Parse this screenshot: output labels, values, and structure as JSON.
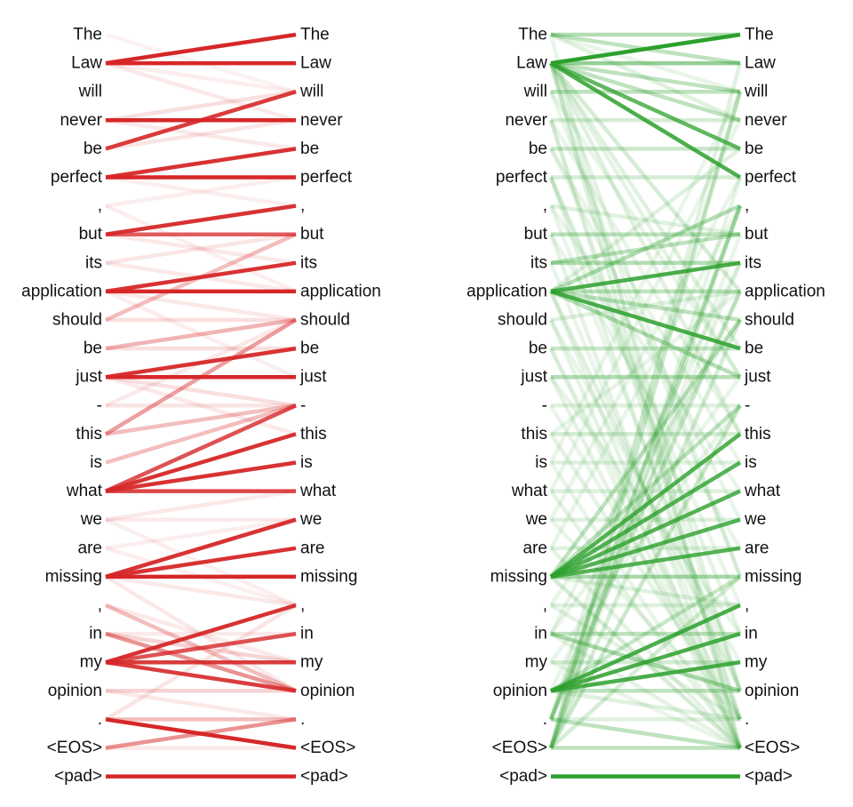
{
  "tokens": [
    "The",
    "Law",
    "will",
    "never",
    "be",
    "perfect",
    ",",
    "but",
    "its",
    "application",
    "should",
    "be",
    "just",
    "-",
    "this",
    "is",
    "what",
    "we",
    "are",
    "missing",
    ",",
    "in",
    "my",
    "opinion",
    ".",
    "<EOS>",
    "<pad>"
  ],
  "panels": [
    {
      "id": "left",
      "color": "#d62728",
      "edges": [
        [
          0,
          2,
          0.06
        ],
        [
          1,
          0,
          1
        ],
        [
          1,
          1,
          1
        ],
        [
          1,
          2,
          0.08
        ],
        [
          1,
          3,
          0.1
        ],
        [
          3,
          2,
          0.15
        ],
        [
          3,
          3,
          1
        ],
        [
          3,
          4,
          0.1
        ],
        [
          4,
          2,
          0.9
        ],
        [
          4,
          3,
          0.12
        ],
        [
          5,
          4,
          0.95
        ],
        [
          5,
          5,
          1
        ],
        [
          5,
          6,
          0.08
        ],
        [
          6,
          5,
          0.08
        ],
        [
          6,
          9,
          0.08
        ],
        [
          7,
          6,
          0.95
        ],
        [
          7,
          7,
          0.75
        ],
        [
          7,
          8,
          0.1
        ],
        [
          8,
          7,
          0.12
        ],
        [
          8,
          9,
          0.1
        ],
        [
          9,
          8,
          0.95
        ],
        [
          9,
          9,
          1
        ],
        [
          9,
          10,
          0.1
        ],
        [
          10,
          10,
          0.15
        ],
        [
          10,
          7,
          0.3
        ],
        [
          11,
          11,
          0.15
        ],
        [
          11,
          10,
          0.35
        ],
        [
          12,
          11,
          0.95
        ],
        [
          12,
          12,
          1
        ],
        [
          12,
          13,
          0.15
        ],
        [
          13,
          13,
          0.12
        ],
        [
          13,
          10,
          0.1
        ],
        [
          14,
          10,
          0.45
        ],
        [
          14,
          13,
          0.3
        ],
        [
          15,
          13,
          0.3
        ],
        [
          16,
          13,
          0.8
        ],
        [
          16,
          14,
          0.95
        ],
        [
          16,
          15,
          0.95
        ],
        [
          16,
          16,
          0.85
        ],
        [
          17,
          16,
          0.1
        ],
        [
          17,
          17,
          0.1
        ],
        [
          18,
          17,
          0.08
        ],
        [
          18,
          20,
          0.08
        ],
        [
          19,
          17,
          0.95
        ],
        [
          19,
          18,
          0.95
        ],
        [
          19,
          19,
          1
        ],
        [
          19,
          20,
          0.1
        ],
        [
          20,
          23,
          0.3
        ],
        [
          20,
          22,
          0.1
        ],
        [
          21,
          23,
          0.5
        ],
        [
          21,
          22,
          0.2
        ],
        [
          22,
          20,
          0.95
        ],
        [
          22,
          21,
          0.8
        ],
        [
          22,
          22,
          0.9
        ],
        [
          22,
          23,
          0.9
        ],
        [
          23,
          23,
          0.2
        ],
        [
          23,
          24,
          0.1
        ],
        [
          24,
          24,
          0.3
        ],
        [
          24,
          25,
          1
        ],
        [
          25,
          24,
          0.5
        ],
        [
          25,
          25,
          0.1
        ],
        [
          26,
          26,
          1
        ],
        [
          19,
          23,
          0.1
        ],
        [
          21,
          21,
          0.1
        ],
        [
          24,
          20,
          0.12
        ],
        [
          17,
          20,
          0.08
        ],
        [
          12,
          14,
          0.1
        ],
        [
          9,
          12,
          0.08
        ]
      ]
    },
    {
      "id": "right",
      "color": "#2ca02c",
      "edges": [
        [
          0,
          0,
          0.35
        ],
        [
          0,
          1,
          0.3
        ],
        [
          0,
          3,
          0.15
        ],
        [
          0,
          2,
          0.1
        ],
        [
          1,
          0,
          1
        ],
        [
          1,
          1,
          0.5
        ],
        [
          1,
          4,
          0.75
        ],
        [
          1,
          5,
          0.85
        ],
        [
          1,
          2,
          0.3
        ],
        [
          1,
          3,
          0.3
        ],
        [
          1,
          9,
          0.2
        ],
        [
          1,
          14,
          0.15
        ],
        [
          1,
          23,
          0.15
        ],
        [
          1,
          19,
          0.12
        ],
        [
          1,
          25,
          0.15
        ],
        [
          1,
          11,
          0.15
        ],
        [
          1,
          12,
          0.12
        ],
        [
          2,
          2,
          0.3
        ],
        [
          3,
          3,
          0.2
        ],
        [
          4,
          4,
          0.25
        ],
        [
          5,
          5,
          0.2
        ],
        [
          6,
          7,
          0.15
        ],
        [
          7,
          7,
          0.3
        ],
        [
          8,
          7,
          0.3
        ],
        [
          8,
          8,
          0.35
        ],
        [
          9,
          8,
          0.85
        ],
        [
          9,
          9,
          0.3
        ],
        [
          9,
          11,
          0.85
        ],
        [
          9,
          12,
          0.35
        ],
        [
          9,
          10,
          0.3
        ],
        [
          9,
          4,
          0.15
        ],
        [
          9,
          6,
          0.35
        ],
        [
          9,
          23,
          0.15
        ],
        [
          9,
          25,
          0.12
        ],
        [
          10,
          9,
          0.15
        ],
        [
          11,
          11,
          0.25
        ],
        [
          12,
          12,
          0.35
        ],
        [
          13,
          13,
          0.15
        ],
        [
          14,
          14,
          0.2
        ],
        [
          15,
          15,
          0.15
        ],
        [
          16,
          16,
          0.15
        ],
        [
          17,
          17,
          0.15
        ],
        [
          18,
          18,
          0.15
        ],
        [
          19,
          14,
          0.8
        ],
        [
          19,
          15,
          0.8
        ],
        [
          19,
          16,
          0.8
        ],
        [
          19,
          17,
          0.8
        ],
        [
          19,
          18,
          0.8
        ],
        [
          19,
          19,
          0.4
        ],
        [
          19,
          13,
          0.3
        ],
        [
          19,
          10,
          0.3
        ],
        [
          19,
          20,
          0.15
        ],
        [
          19,
          25,
          0.2
        ],
        [
          20,
          20,
          0.15
        ],
        [
          21,
          21,
          0.3
        ],
        [
          21,
          23,
          0.4
        ],
        [
          22,
          22,
          0.2
        ],
        [
          23,
          20,
          0.85
        ],
        [
          23,
          21,
          0.85
        ],
        [
          23,
          22,
          0.85
        ],
        [
          23,
          23,
          0.3
        ],
        [
          23,
          19,
          0.25
        ],
        [
          23,
          24,
          0.15
        ],
        [
          24,
          24,
          0.15
        ],
        [
          24,
          25,
          0.3
        ],
        [
          24,
          6,
          0.3
        ],
        [
          24,
          9,
          0.25
        ],
        [
          25,
          25,
          0.3
        ],
        [
          25,
          2,
          0.25
        ],
        [
          25,
          6,
          0.25
        ],
        [
          25,
          13,
          0.25
        ],
        [
          25,
          10,
          0.2
        ],
        [
          25,
          19,
          0.2
        ],
        [
          25,
          1,
          0.15
        ],
        [
          26,
          26,
          1
        ],
        [
          0,
          25,
          0.1
        ],
        [
          3,
          24,
          0.12
        ],
        [
          5,
          24,
          0.12
        ],
        [
          7,
          25,
          0.12
        ],
        [
          10,
          25,
          0.12
        ],
        [
          12,
          25,
          0.12
        ],
        [
          14,
          24,
          0.12
        ],
        [
          16,
          25,
          0.12
        ],
        [
          18,
          25,
          0.12
        ],
        [
          20,
          24,
          0.12
        ],
        [
          2,
          19,
          0.1
        ],
        [
          3,
          23,
          0.1
        ],
        [
          5,
          21,
          0.12
        ],
        [
          4,
          17,
          0.1
        ],
        [
          6,
          16,
          0.1
        ],
        [
          8,
          24,
          0.1
        ],
        [
          11,
          25,
          0.1
        ],
        [
          13,
          24,
          0.1
        ],
        [
          15,
          25,
          0.1
        ],
        [
          17,
          24,
          0.1
        ],
        [
          22,
          25,
          0.1
        ],
        [
          21,
          25,
          0.12
        ],
        [
          2,
          12,
          0.1
        ],
        [
          3,
          14,
          0.1
        ],
        [
          4,
          15,
          0.1
        ],
        [
          5,
          20,
          0.1
        ],
        [
          6,
          23,
          0.1
        ],
        [
          7,
          18,
          0.1
        ],
        [
          10,
          22,
          0.1
        ],
        [
          11,
          24,
          0.1
        ],
        [
          12,
          21,
          0.1
        ],
        [
          14,
          9,
          0.1
        ],
        [
          15,
          2,
          0.1
        ],
        [
          16,
          3,
          0.1
        ],
        [
          17,
          5,
          0.1
        ],
        [
          18,
          6,
          0.1
        ],
        [
          20,
          10,
          0.1
        ],
        [
          21,
          12,
          0.1
        ],
        [
          22,
          13,
          0.1
        ],
        [
          24,
          2,
          0.12
        ],
        [
          25,
          5,
          0.12
        ],
        [
          24,
          8,
          0.12
        ],
        [
          25,
          7,
          0.1
        ],
        [
          23,
          9,
          0.1
        ],
        [
          21,
          8,
          0.1
        ]
      ]
    }
  ]
}
